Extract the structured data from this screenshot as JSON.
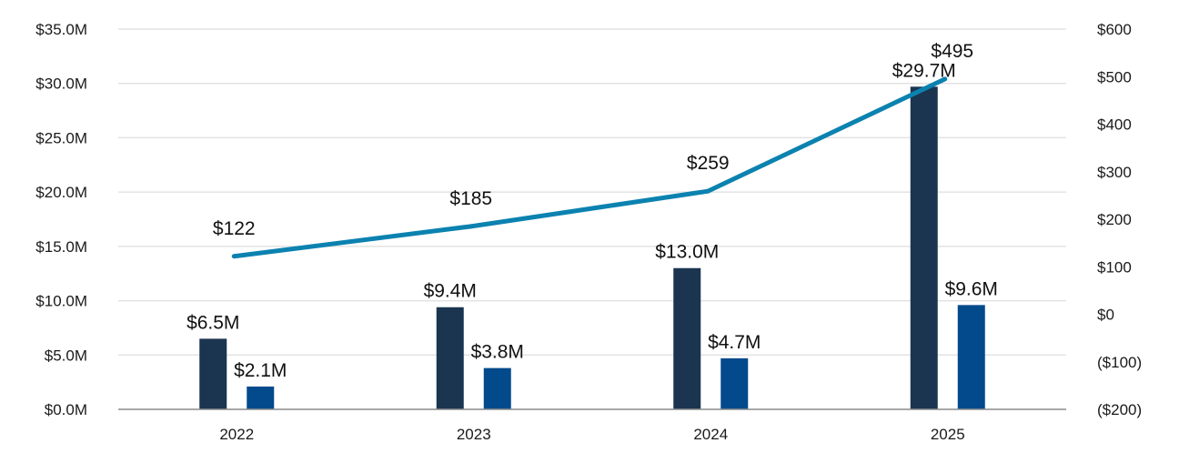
{
  "chart_data": {
    "type": "bar",
    "title": "",
    "xlabel": "",
    "ylabel": "",
    "categories": [
      "2022",
      "2023",
      "2024",
      "2025"
    ],
    "ylim": [
      0,
      35
    ],
    "y_ticks": [
      "$0.0M",
      "$5.0M",
      "$10.0M",
      "$15.0M",
      "$20.0M",
      "$25.0M",
      "$30.0M",
      "$35.0M"
    ],
    "y2lim": [
      -200,
      600
    ],
    "y2_ticks": [
      "($200)",
      "($100)",
      "$0",
      "$100",
      "$200",
      "$300",
      "$400",
      "$500",
      "$600"
    ],
    "grid": true,
    "legend": "none",
    "series": [
      {
        "kind": "bar",
        "axis": "left",
        "color": "#1b3550",
        "values": [
          6.5,
          9.4,
          13.0,
          29.7
        ],
        "labels": [
          "$6.5M",
          "$9.4M",
          "$13.0M",
          "$29.7M"
        ]
      },
      {
        "kind": "bar",
        "axis": "left",
        "color": "#034a8c",
        "values": [
          2.1,
          3.8,
          4.7,
          9.6
        ],
        "labels": [
          "$2.1M",
          "$3.8M",
          "$4.7M",
          "$9.6M"
        ]
      },
      {
        "kind": "line",
        "axis": "right",
        "color": "#0b82b0",
        "values": [
          122,
          185,
          259,
          495
        ],
        "labels": [
          "$122",
          "$185",
          "$259",
          "$495"
        ]
      }
    ]
  }
}
